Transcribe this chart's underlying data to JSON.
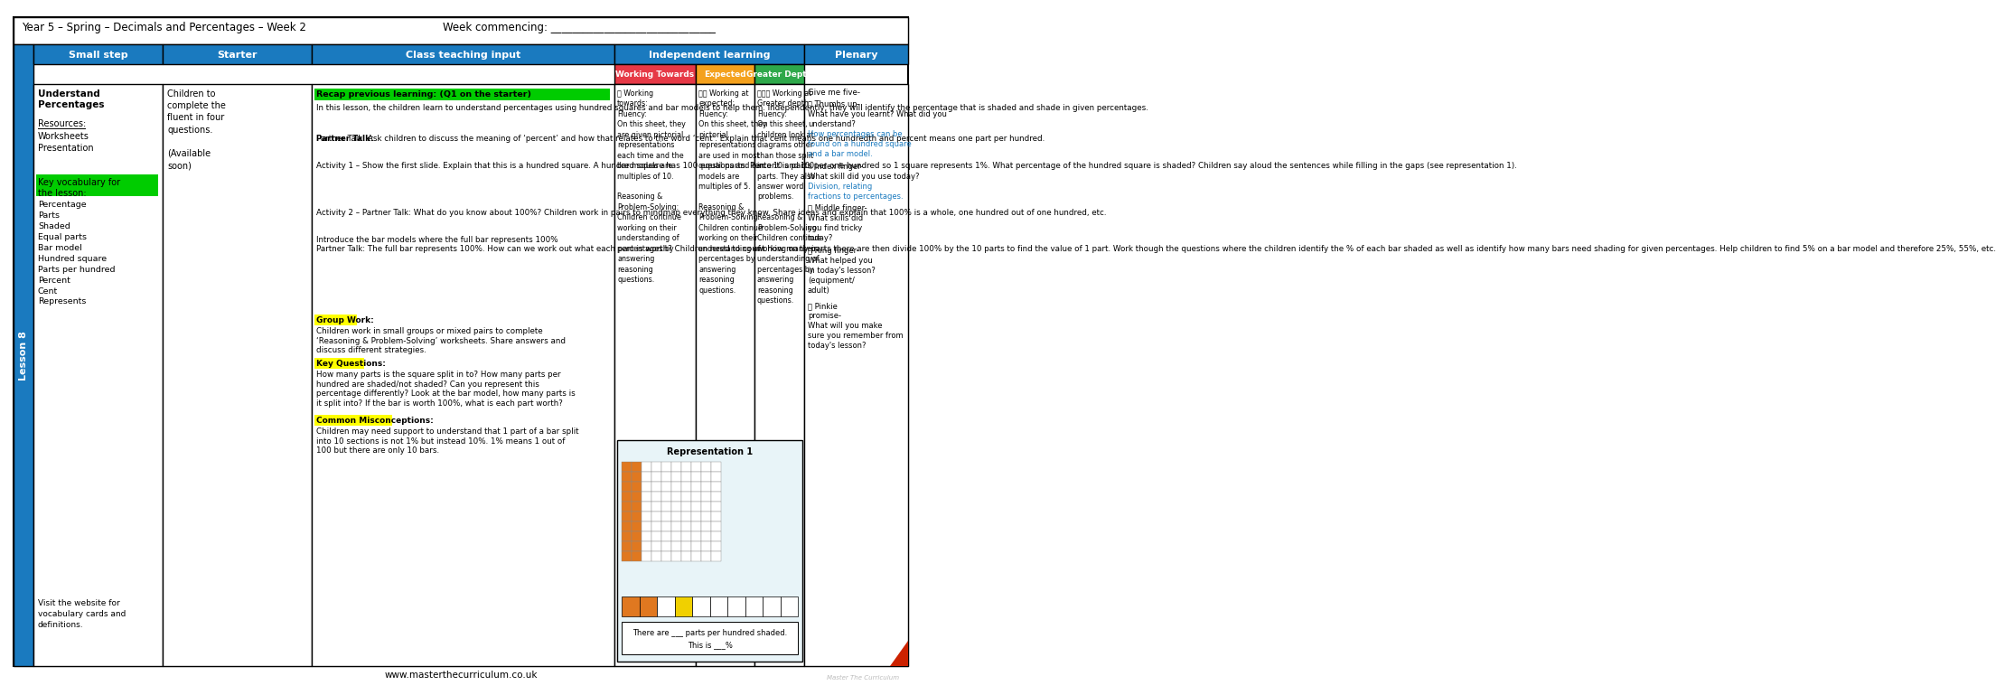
{
  "title_left": "Year 5 – Spring – Decimals and Percentages – Week 2",
  "title_right": "Week commencing: _______________________________",
  "lesson_label": "Lesson 8",
  "header_bg": "#1a7abf",
  "col_headers": [
    "Small step",
    "Starter",
    "Class teaching input",
    "Independent learning",
    "Plenary"
  ],
  "ind_subheaders": [
    "Working Towards",
    "Expected",
    "Greater Depth"
  ],
  "ind_colors": [
    "#e63946",
    "#f4a11d",
    "#2ea84a"
  ],
  "small_step_title": "Understand\nPercentages",
  "small_step_vocab": "Percentage\nParts\nShaded\nEqual parts\nBar model\nHundred square\nParts per hundred\nPercent\nCent\nRepresents",
  "small_step_visit": "Visit the website for\nvocabulary cards and\ndefinitions.",
  "starter_text": "Children to\ncomplete the\nfluent in four\nquestions.\n\n(Available\nsoon)",
  "class_teaching_recap": "Recap previous learning: (Q1 on the starter)",
  "class_teaching_intro": "In this lesson, the children learn to understand percentages using hundred squares and bar models to help them. Independently, they will identify the percentage that is shaded and shade in given percentages.",
  "partner_talk_1_rest": " Ask children to discuss the meaning of ‘percent’ and how that relates to the word ‘cent’. Explain that cent means one hundredth and percent means one part per hundred.",
  "activity_1_rest": " – Show the first slide. Explain that this is a hundred square. A hundred square has 100 equal parts. Percent is parts per one hundred so 1 square represents 1%. What percentage of the hundred square is shaded? Children say aloud the sentences while filling in the gaps (see representation 1).",
  "partner_talk_2_rest": " What do you know about 100%? Children work in pairs to mindmap everything they know. Share ideas and explain that 100% is a whole, one hundred out of one hundred, etc.",
  "bar_model_intro": "Introduce the bar models where the full bar represents 100%",
  "bar_model_pt_rest": " The full bar represents 100%. How can we work out what each part is worth? Children need to count how many parts there are then divide 100% by the 10 parts to find the value of 1 part. Work though the questions where the children identify the % of each bar shaded as well as identify how many bars need shading for given percentages. Help children to find 5% on a bar model and therefore 25%, 55%, etc.",
  "group_work_label": "Group Work:",
  "group_work_text": "Children work in small groups or mixed pairs to complete\n‘Reasoning & Problem-Solving’ worksheets. Share answers and\ndiscuss different strategies.",
  "key_questions_label": "Key Questions:",
  "key_questions_text": "How many parts is the square split in to? How many parts per\nhundred are shaded/not shaded? Can you represent this\npercentage differently? Look at the bar model, how many parts is\nit split into? If the bar is worth 100%, what is each part worth?",
  "misconceptions_label": "Common Misconceptions:",
  "misconceptions_text": "Children may need support to understand that 1 part of a bar split\ninto 10 sections is not 1% but instead 10%. 1% means 1 out of\n100 but there are only 10 bars.",
  "working_towards_text": "Working\ntowards:\nFluency:\nOn this sheet, they\nare given pictorial\nrepresentations\neach time and the\nbar models are\nmultiples of 10.\n\nReasoning &\nProblem-Solving:\nChildren continue\nworking on their\nunderstanding of\npercentages by\nanswering\nreasoning\nquestions.",
  "expected_text": "Working at\nexpected:\nFluency:\nOn this sheet, they\npictorial\nrepresentations\nare used in most\nquestions and bar\nmodels are\nmultiples of 5.\n\nReasoning &\nProblem-Solving:\nChildren continue\nworking on their\nunderstanding of\npercentages by\nanswering\nreasoning\nquestions.",
  "greater_depth_text": "Working at\nGreater depth:\nFluency:\nOn this sheet,\nchildren look at\ndiagrams other\nthan those split\ninto 10 and 100\nparts. They also\nanswer word\nproblems.\n\nReasoning &\nProblem-Solving:\nChildren continue\nworking on their\nunderstanding of\npercentages by\nanswering\nreasoning\nquestions.",
  "plenary_line1": "Give me five-",
  "plenary_line2": "Thumbs up-",
  "plenary_line3": "What have you learnt? What did you\nunderstand?",
  "plenary_line4": "How percentages can be\nfound on a hundred square\nand a bar model.",
  "plenary_line5": "Index finger-",
  "plenary_line6": "What skill did you use today?",
  "plenary_line7": "Division, relating\nfractions to percentages.",
  "plenary_line8": "Middle finger-",
  "plenary_line9": "What skills did\nyou find tricky\ntoday?",
  "plenary_line10": "Ring finger-",
  "plenary_line11": "What helped you\nin today's lesson?\n(equipment/\nadult)",
  "plenary_line12": "Pinkie\npromise-",
  "plenary_line13": "What will you make\nsure you remember from\ntoday's lesson?",
  "representation_title": "Representation 1",
  "rep_caption1": "There are ___ parts per hundred shaded.",
  "rep_caption2": "This is ___%",
  "footer": "www.masterthecurriculum.co.uk",
  "green_highlight": "#00cc00",
  "yellow_highlight": "#ffff00",
  "blue_link": "#1a7abf",
  "orange_shade": "#e07820",
  "yellow_shade": "#f0d000"
}
